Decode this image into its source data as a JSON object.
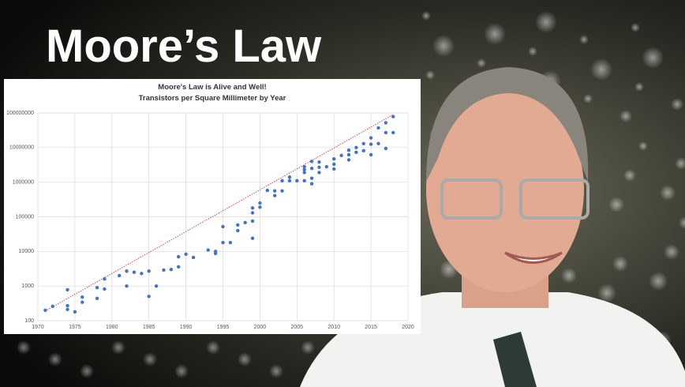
{
  "heading": "Moore’s Law",
  "chart_data": {
    "type": "scatter",
    "title": "Moore's Law is Alive and Well!",
    "subtitle": "Transistors per Square Millimeter by Year",
    "x": [
      1971,
      1972,
      1974,
      1974,
      1974,
      1975,
      1976,
      1976,
      1978,
      1978,
      1979,
      1979,
      1981,
      1982,
      1982,
      1983,
      1984,
      1985,
      1985,
      1986,
      1987,
      1988,
      1989,
      1989,
      1990,
      1991,
      1993,
      1994,
      1994,
      1995,
      1995,
      1996,
      1997,
      1997,
      1998,
      1999,
      1999,
      1999,
      1999,
      2000,
      2000,
      2001,
      2002,
      2002,
      2003,
      2003,
      2004,
      2004,
      2005,
      2006,
      2006,
      2006,
      2006,
      2007,
      2007,
      2007,
      2007,
      2008,
      2008,
      2008,
      2009,
      2010,
      2010,
      2010,
      2011,
      2012,
      2012,
      2012,
      2013,
      2013,
      2014,
      2014,
      2015,
      2015,
      2015,
      2016,
      2016,
      2017,
      2017,
      2017,
      2018,
      2018
    ],
    "values": [
      200,
      260,
      780,
      270,
      210,
      180,
      480,
      340,
      440,
      900,
      820,
      1600,
      2000,
      2700,
      1000,
      2500,
      2300,
      2700,
      500,
      1000,
      2900,
      3000,
      3600,
      7000,
      8300,
      6700,
      11000,
      10000,
      8700,
      18000,
      52000,
      18000,
      58000,
      40000,
      68000,
      24000,
      180000,
      130000,
      75000,
      250000,
      190000,
      580000,
      410000,
      560000,
      560000,
      1100000,
      1100000,
      1400000,
      1100000,
      2300000,
      2800000,
      1900000,
      1100000,
      4000000,
      2500000,
      1300000,
      900000,
      3800000,
      2700000,
      1900000,
      2800000,
      4700000,
      3300000,
      2400000,
      5900000,
      8400000,
      6200000,
      4400000,
      10000000,
      7300000,
      13000000,
      8100000,
      12500000,
      19000000,
      6200000,
      37000000,
      13000000,
      52000000,
      27000000,
      9400000,
      78000000,
      27000000
    ],
    "color": "#4472c4",
    "trendline": {
      "x": [
        1971,
        2018
      ],
      "values": [
        190,
        90000000
      ],
      "color": "#e03030"
    },
    "xlim": [
      1970,
      2020
    ],
    "xticks": [
      1970,
      1975,
      1980,
      1985,
      1990,
      1995,
      2000,
      2005,
      2010,
      2015,
      2020
    ],
    "ylim": [
      100,
      100000000
    ],
    "yticks": [
      100,
      1000,
      10000,
      100000,
      1000000,
      10000000,
      100000000
    ],
    "log_y": true,
    "grid": true
  }
}
